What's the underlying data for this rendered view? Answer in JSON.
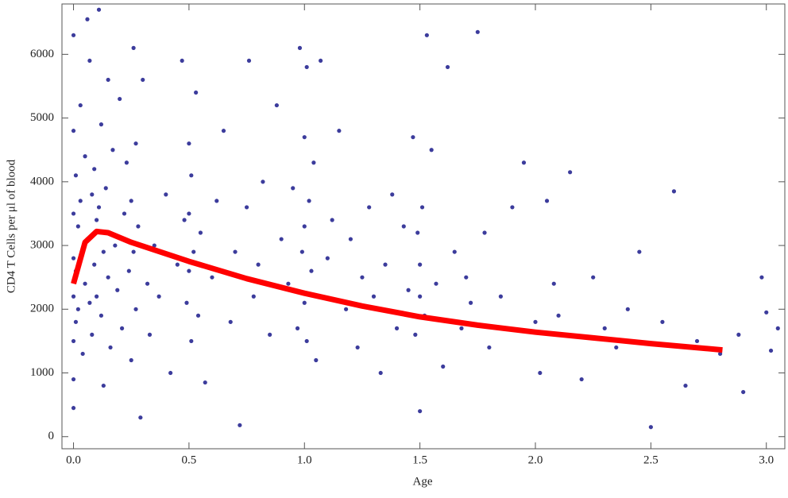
{
  "chart_data": {
    "type": "scatter",
    "xlabel": "Age",
    "ylabel": "CD4 T Cells per μl of blood",
    "xlim": [
      -0.05,
      3.08
    ],
    "ylim": [
      -190,
      6790
    ],
    "xticks": [
      {
        "value": 0,
        "label": "0.0"
      },
      {
        "value": 0.5,
        "label": "0.5"
      },
      {
        "value": 1,
        "label": "1.0"
      },
      {
        "value": 1.5,
        "label": "1.5"
      },
      {
        "value": 2,
        "label": "2.0"
      },
      {
        "value": 2.5,
        "label": "2.5"
      },
      {
        "value": 3,
        "label": "3.0"
      }
    ],
    "yticks": [
      0,
      1000,
      2000,
      3000,
      4000,
      5000,
      6000
    ],
    "series": [
      {
        "type": "scatter",
        "color": "#3c3c9c",
        "x": [
          0.0,
          0.0,
          0.0,
          0.0,
          0.0,
          0.0,
          0.0,
          0.0,
          0.01,
          0.01,
          0.01,
          0.02,
          0.02,
          0.03,
          0.03,
          0.04,
          0.04,
          0.05,
          0.05,
          0.06,
          0.06,
          0.07,
          0.07,
          0.08,
          0.08,
          0.09,
          0.09,
          0.1,
          0.1,
          0.11,
          0.11,
          0.12,
          0.12,
          0.13,
          0.13,
          0.14,
          0.15,
          0.15,
          0.16,
          0.17,
          0.18,
          0.19,
          0.2,
          0.21,
          0.22,
          0.23,
          0.24,
          0.25,
          0.25,
          0.26,
          0.26,
          0.27,
          0.27,
          0.28,
          0.29,
          0.3,
          0.32,
          0.33,
          0.35,
          0.37,
          0.4,
          0.42,
          0.45,
          0.47,
          0.48,
          0.49,
          0.5,
          0.5,
          0.5,
          0.51,
          0.51,
          0.52,
          0.53,
          0.54,
          0.55,
          0.57,
          0.6,
          0.62,
          0.65,
          0.68,
          0.7,
          0.72,
          0.75,
          0.76,
          0.78,
          0.8,
          0.82,
          0.85,
          0.88,
          0.9,
          0.93,
          0.95,
          0.97,
          0.98,
          0.99,
          1.0,
          1.0,
          1.0,
          1.01,
          1.01,
          1.02,
          1.03,
          1.04,
          1.05,
          1.07,
          1.1,
          1.12,
          1.15,
          1.18,
          1.2,
          1.23,
          1.25,
          1.28,
          1.3,
          1.33,
          1.35,
          1.38,
          1.4,
          1.43,
          1.45,
          1.47,
          1.48,
          1.49,
          1.5,
          1.5,
          1.5,
          1.51,
          1.52,
          1.53,
          1.55,
          1.57,
          1.6,
          1.62,
          1.65,
          1.68,
          1.7,
          1.72,
          1.75,
          1.78,
          1.8,
          1.85,
          1.9,
          1.95,
          2.0,
          2.02,
          2.05,
          2.08,
          2.1,
          2.15,
          2.2,
          2.25,
          2.3,
          2.35,
          2.4,
          2.45,
          2.5,
          2.55,
          2.6,
          2.65,
          2.7,
          2.8,
          2.88,
          2.9,
          2.98,
          3.0,
          3.02,
          3.05
        ],
        "values": [
          6300,
          4800,
          3500,
          2800,
          2200,
          1500,
          900,
          450,
          4100,
          2600,
          1800,
          3300,
          2000,
          5200,
          3700,
          2900,
          1300,
          4400,
          2400,
          6550,
          3100,
          5900,
          2100,
          3800,
          1600,
          4200,
          2700,
          3400,
          2200,
          6700,
          3600,
          4900,
          1900,
          2900,
          800,
          3900,
          5600,
          2500,
          1400,
          4500,
          3000,
          2300,
          5300,
          1700,
          3500,
          4300,
          2600,
          3700,
          1200,
          6100,
          2900,
          4600,
          2000,
          3300,
          300,
          5600,
          2400,
          1600,
          3000,
          2200,
          3800,
          1000,
          2700,
          5900,
          3400,
          2100,
          4600,
          3500,
          2600,
          1500,
          4100,
          2900,
          5400,
          1900,
          3200,
          850,
          2500,
          3700,
          4800,
          1800,
          2900,
          180,
          3600,
          5900,
          2200,
          2700,
          4000,
          1600,
          5200,
          3100,
          2400,
          3900,
          1700,
          6100,
          2900,
          4700,
          3300,
          2100,
          5800,
          1500,
          3700,
          2600,
          4300,
          1200,
          5900,
          2800,
          3400,
          4800,
          2000,
          3100,
          1400,
          2500,
          3600,
          2200,
          1000,
          2700,
          3800,
          1700,
          3300,
          2300,
          4700,
          1600,
          3200,
          2200,
          2700,
          400,
          3600,
          1900,
          6300,
          4500,
          2400,
          1100,
          5800,
          2900,
          1700,
          2500,
          2100,
          6350,
          3200,
          1400,
          2200,
          3600,
          4300,
          1800,
          1000,
          3700,
          2400,
          1900,
          4150,
          900,
          2500,
          1700,
          1400,
          2000,
          2900,
          150,
          1800,
          3850,
          800,
          1500,
          1300,
          1600,
          700,
          2500,
          1950,
          1350,
          1700
        ]
      },
      {
        "type": "line",
        "color": "#ff0000",
        "x": [
          0,
          0.05,
          0.1,
          0.15,
          0.25,
          0.5,
          0.75,
          1.0,
          1.25,
          1.5,
          1.75,
          2.0,
          2.25,
          2.5,
          2.81
        ],
        "values": [
          2400,
          3050,
          3220,
          3200,
          3050,
          2750,
          2480,
          2250,
          2050,
          1880,
          1750,
          1640,
          1550,
          1460,
          1360
        ]
      }
    ]
  }
}
